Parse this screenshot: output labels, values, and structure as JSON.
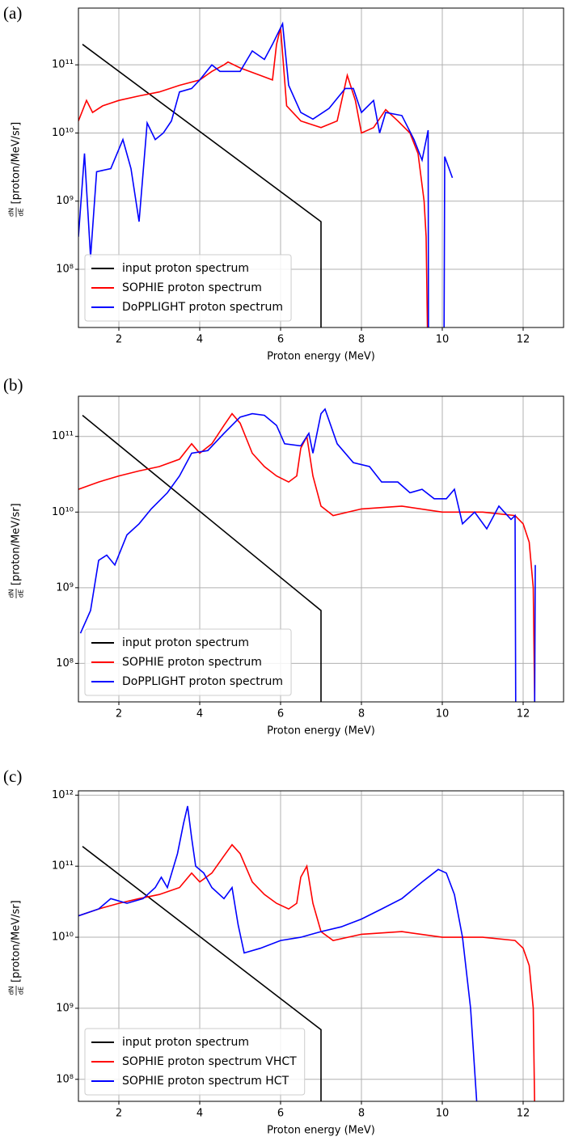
{
  "chart_data": [
    {
      "type": "line",
      "panel_label": "(a)",
      "xlabel": "Proton energy (MeV)",
      "ylabel_numerator": "dN",
      "ylabel_denominator": "dE",
      "ylabel": "[proton/MeV/sr]",
      "xlim": [
        1,
        13
      ],
      "xticks": [
        2,
        4,
        6,
        8,
        10,
        12
      ],
      "ylim": [
        14000000.0,
        680000000000.0
      ],
      "yscale": "log",
      "yticks": [
        {
          "value": 100000000.0,
          "label": "10⁸"
        },
        {
          "value": 1000000000.0,
          "label": "10⁹"
        },
        {
          "value": 10000000000.0,
          "label": "10¹⁰"
        },
        {
          "value": 100000000000.0,
          "label": "10¹¹"
        }
      ],
      "grid": true,
      "legend": "lower left",
      "series": [
        {
          "name": "input proton spectrum",
          "color": "#000000",
          "x": [
            1.1,
            7,
            7
          ],
          "values": [
            200000000000.0,
            500000000.0,
            0
          ]
        },
        {
          "name": "SOPHIE proton spectrum",
          "color": "#ff0000",
          "x": [
            1.0,
            1.2,
            1.35,
            1.6,
            2,
            2.5,
            3,
            3.5,
            4,
            4.3,
            4.6,
            4.7,
            5,
            5.5,
            5.8,
            5.9,
            6.0,
            6.15,
            6.5,
            7,
            7.4,
            7.65,
            7.85,
            8.0,
            8.3,
            8.6,
            8.9,
            9.2,
            9.4,
            9.55,
            9.6,
            9.65
          ],
          "values": [
            15000000000.0,
            30000000000.0,
            20000000000.0,
            25000000000.0,
            30000000000.0,
            35000000000.0,
            40000000000.0,
            50000000000.0,
            60000000000.0,
            80000000000.0,
            100000000000.0,
            110000000000.0,
            90000000000.0,
            70000000000.0,
            60000000000.0,
            200000000000.0,
            350000000000.0,
            25000000000.0,
            15000000000.0,
            12000000000.0,
            15000000000.0,
            70000000000.0,
            30000000000.0,
            10000000000.0,
            12000000000.0,
            22000000000.0,
            15000000000.0,
            10000000000.0,
            5000000000.0,
            1000000000.0,
            300000000.0,
            0
          ]
        },
        {
          "name": "DoPPLIGHT proton spectrum",
          "color": "#0000ff",
          "x": [
            1.0,
            1.15,
            1.3,
            1.45,
            1.8,
            2.1,
            2.3,
            2.5,
            2.7,
            2.9,
            3.1,
            3.3,
            3.5,
            3.8,
            4.0,
            4.3,
            4.5,
            5.0,
            5.3,
            5.6,
            5.8,
            6.05,
            6.2,
            6.5,
            6.8,
            7.2,
            7.6,
            7.8,
            8.0,
            8.3,
            8.45,
            8.6,
            9.0,
            9.3,
            9.5,
            9.65,
            9.66,
            9.85,
            10.04,
            10.06,
            10.25
          ],
          "values": [
            300000000.0,
            5000000000.0,
            150000000.0,
            2700000000.0,
            3000000000.0,
            8000000000.0,
            3000000000.0,
            500000000.0,
            14000000000.0,
            8000000000.0,
            10000000000.0,
            15000000000.0,
            40000000000.0,
            45000000000.0,
            60000000000.0,
            100000000000.0,
            80000000000.0,
            80000000000.0,
            160000000000.0,
            120000000000.0,
            200000000000.0,
            400000000000.0,
            50000000000.0,
            20000000000.0,
            16000000000.0,
            23000000000.0,
            45000000000.0,
            45000000000.0,
            20000000000.0,
            30000000000.0,
            10000000000.0,
            20000000000.0,
            18000000000.0,
            8000000000.0,
            4000000000.0,
            11000000000.0,
            0,
            null,
            0,
            4500000000.0,
            2200000000.0
          ]
        }
      ]
    },
    {
      "type": "line",
      "panel_label": "(b)",
      "xlabel": "Proton energy (MeV)",
      "ylabel_numerator": "dN",
      "ylabel_denominator": "dE",
      "ylabel": "[proton/MeV/sr]",
      "xlim": [
        1,
        13
      ],
      "xticks": [
        2,
        4,
        6,
        8,
        10,
        12
      ],
      "ylim": [
        31000000.0,
        340000000000.0
      ],
      "yscale": "log",
      "yticks": [
        {
          "value": 100000000.0,
          "label": "10⁸"
        },
        {
          "value": 1000000000.0,
          "label": "10⁹"
        },
        {
          "value": 10000000000.0,
          "label": "10¹⁰"
        },
        {
          "value": 100000000000.0,
          "label": "10¹¹"
        }
      ],
      "grid": true,
      "legend": "lower left",
      "series": [
        {
          "name": "input proton spectrum",
          "color": "#000000",
          "x": [
            1.1,
            7,
            7
          ],
          "values": [
            190000000000.0,
            500000000.0,
            0
          ]
        },
        {
          "name": "SOPHIE proton spectrum",
          "color": "#ff0000",
          "x": [
            1.0,
            1.5,
            2,
            2.5,
            3,
            3.5,
            3.8,
            4,
            4.3,
            4.6,
            4.8,
            5.0,
            5.3,
            5.6,
            5.9,
            6.2,
            6.4,
            6.5,
            6.65,
            6.8,
            7.0,
            7.3,
            8,
            9,
            10,
            11,
            11.8,
            12.0,
            12.15,
            12.25,
            12.3
          ],
          "values": [
            20000000000.0,
            25000000000.0,
            30000000000.0,
            35000000000.0,
            40000000000.0,
            50000000000.0,
            80000000000.0,
            60000000000.0,
            80000000000.0,
            140000000000.0,
            200000000000.0,
            150000000000.0,
            60000000000.0,
            40000000000.0,
            30000000000.0,
            25000000000.0,
            30000000000.0,
            70000000000.0,
            100000000000.0,
            30000000000.0,
            12000000000.0,
            9000000000.0,
            11000000000.0,
            12000000000.0,
            10000000000.0,
            10000000000.0,
            9000000000.0,
            7000000000.0,
            4000000000.0,
            1000000000.0,
            0
          ]
        },
        {
          "name": "DoPPLIGHT proton spectrum",
          "color": "#0000ff",
          "x": [
            1.05,
            1.3,
            1.5,
            1.7,
            1.9,
            2.2,
            2.5,
            2.8,
            3.2,
            3.5,
            3.8,
            4.2,
            4.6,
            5.0,
            5.3,
            5.6,
            5.9,
            6.1,
            6.5,
            6.7,
            6.8,
            7.0,
            7.1,
            7.4,
            7.8,
            8.2,
            8.5,
            8.9,
            9.2,
            9.5,
            9.8,
            10.1,
            10.3,
            10.5,
            10.8,
            11.1,
            11.4,
            11.7,
            11.8,
            11.82,
            12.05,
            12.28,
            12.3
          ],
          "values": [
            250000000.0,
            500000000.0,
            2300000000.0,
            2700000000.0,
            2000000000.0,
            5000000000.0,
            7000000000.0,
            11000000000.0,
            18000000000.0,
            30000000000.0,
            60000000000.0,
            65000000000.0,
            110000000000.0,
            180000000000.0,
            200000000000.0,
            190000000000.0,
            140000000000.0,
            80000000000.0,
            75000000000.0,
            110000000000.0,
            60000000000.0,
            200000000000.0,
            230000000000.0,
            80000000000.0,
            45000000000.0,
            40000000000.0,
            25000000000.0,
            25000000000.0,
            18000000000.0,
            20000000000.0,
            15000000000.0,
            15000000000.0,
            20000000000.0,
            7000000000.0,
            10000000000.0,
            6000000000.0,
            12000000000.0,
            8000000000.0,
            9000000000.0,
            0,
            null,
            0,
            2000000000.0
          ]
        }
      ]
    },
    {
      "type": "line",
      "panel_label": "(c)",
      "xlabel": "Proton energy (MeV)",
      "ylabel_numerator": "dN",
      "ylabel_denominator": "dE",
      "ylabel": "[proton/MeV/sr]",
      "xlim": [
        1,
        13
      ],
      "xticks": [
        2,
        4,
        6,
        8,
        10,
        12
      ],
      "ylim": [
        49000000.0,
        1150000000000.0
      ],
      "yscale": "log",
      "yticks": [
        {
          "value": 100000000.0,
          "label": "10⁸"
        },
        {
          "value": 1000000000.0,
          "label": "10⁹"
        },
        {
          "value": 10000000000.0,
          "label": "10¹⁰"
        },
        {
          "value": 100000000000.0,
          "label": "10¹¹"
        },
        {
          "value": 1000000000000.0,
          "label": "10¹²"
        }
      ],
      "grid": true,
      "legend": "lower left",
      "series": [
        {
          "name": "input proton spectrum",
          "color": "#000000",
          "x": [
            1.1,
            7,
            7
          ],
          "values": [
            190000000000.0,
            500000000.0,
            0
          ]
        },
        {
          "name": "SOPHIE proton spectrum VHCT",
          "color": "#ff0000",
          "x": [
            1.0,
            1.5,
            2,
            2.5,
            3,
            3.5,
            3.8,
            4,
            4.3,
            4.6,
            4.8,
            5.0,
            5.3,
            5.6,
            5.9,
            6.2,
            6.4,
            6.5,
            6.65,
            6.8,
            7.0,
            7.3,
            8,
            9,
            10,
            11,
            11.8,
            12.0,
            12.15,
            12.25,
            12.3
          ],
          "values": [
            20000000000.0,
            25000000000.0,
            30000000000.0,
            35000000000.0,
            40000000000.0,
            50000000000.0,
            80000000000.0,
            60000000000.0,
            80000000000.0,
            140000000000.0,
            200000000000.0,
            150000000000.0,
            60000000000.0,
            40000000000.0,
            30000000000.0,
            25000000000.0,
            30000000000.0,
            70000000000.0,
            100000000000.0,
            30000000000.0,
            12000000000.0,
            9000000000.0,
            11000000000.0,
            12000000000.0,
            10000000000.0,
            10000000000.0,
            9000000000.0,
            7000000000.0,
            4000000000.0,
            1000000000.0,
            0
          ]
        },
        {
          "name": "SOPHIE proton spectrum HCT",
          "color": "#0000ff",
          "x": [
            1.0,
            1.5,
            1.8,
            2.2,
            2.6,
            2.9,
            3.05,
            3.2,
            3.45,
            3.6,
            3.7,
            3.8,
            3.9,
            4.1,
            4.3,
            4.6,
            4.8,
            4.95,
            5.1,
            5.5,
            6,
            6.5,
            7,
            7.5,
            8,
            8.5,
            9,
            9.5,
            9.9,
            10.1,
            10.3,
            10.5,
            10.7,
            10.85,
            10.9
          ],
          "values": [
            20000000000.0,
            25000000000.0,
            35000000000.0,
            30000000000.0,
            35000000000.0,
            50000000000.0,
            70000000000.0,
            50000000000.0,
            150000000000.0,
            400000000000.0,
            700000000000.0,
            250000000000.0,
            100000000000.0,
            80000000000.0,
            50000000000.0,
            35000000000.0,
            50000000000.0,
            15000000000.0,
            6000000000.0,
            7000000000.0,
            9000000000.0,
            10000000000.0,
            12000000000.0,
            14000000000.0,
            18000000000.0,
            25000000000.0,
            35000000000.0,
            60000000000.0,
            90000000000.0,
            80000000000.0,
            40000000000.0,
            10000000000.0,
            1000000000.0,
            50000000.0,
            0
          ]
        }
      ]
    }
  ]
}
